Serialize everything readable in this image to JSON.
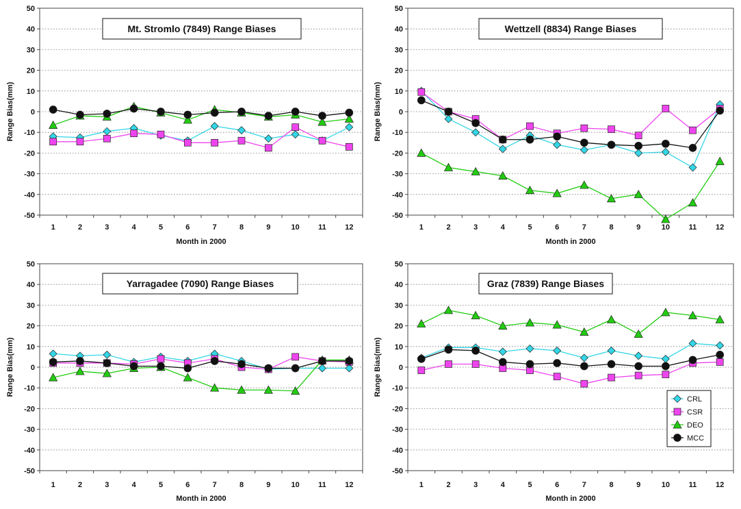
{
  "legend": {
    "placement": "bottom-right of Graz panel",
    "entries": [
      {
        "name": "CRL",
        "color": "#33d6e6",
        "marker": "diamond"
      },
      {
        "name": "CSR",
        "color": "#ee44ee",
        "marker": "square"
      },
      {
        "name": "DEO",
        "color": "#22cc11",
        "marker": "triangle"
      },
      {
        "name": "MCC",
        "color": "#111111",
        "marker": "circle"
      }
    ]
  },
  "chart_data": [
    {
      "type": "line",
      "title": "Mt. Stromlo (7849) Range Biases",
      "xlabel": "Month in 2000",
      "ylabel": "Range Bias(mm)",
      "ylim": [
        -50,
        50
      ],
      "yticks": [
        "50",
        "40",
        "30",
        "20",
        "10",
        "0",
        "-10",
        "-20",
        "-30",
        "-40",
        "-50"
      ],
      "categories": [
        "1",
        "2",
        "3",
        "4",
        "5",
        "6",
        "7",
        "8",
        "9",
        "10",
        "11",
        "12"
      ],
      "grid": "dotted horizontal",
      "series": [
        {
          "name": "CRL",
          "values": [
            -12,
            -12.5,
            -9.5,
            -8,
            -11.5,
            -14,
            -7,
            -9,
            -13,
            -11,
            -14,
            -7.5
          ]
        },
        {
          "name": "CSR",
          "values": [
            -14.5,
            -14.5,
            -13,
            -10.5,
            -11,
            -15,
            -15,
            -14,
            -17.5,
            -7.5,
            -14,
            -17
          ]
        },
        {
          "name": "DEO",
          "values": [
            -6.5,
            -2,
            -2.5,
            2.5,
            -0.5,
            -4,
            1,
            -0.5,
            -2.5,
            -1.5,
            -5,
            -3.5
          ]
        },
        {
          "name": "MCC",
          "values": [
            1,
            -1.5,
            -1,
            1.5,
            0,
            -1.5,
            -0.5,
            0,
            -2,
            0,
            -2,
            -0.5
          ]
        }
      ]
    },
    {
      "type": "line",
      "title": "Wettzell (8834) Range Biases",
      "xlabel": "Month in 2000",
      "ylabel": "Range Bias(mm)",
      "ylim": [
        -50,
        50
      ],
      "yticks": [
        "50",
        "40",
        "30",
        "20",
        "10",
        "0",
        "-10",
        "-20",
        "-30",
        "-40",
        "-50"
      ],
      "categories": [
        "1",
        "2",
        "3",
        "4",
        "5",
        "6",
        "7",
        "8",
        "9",
        "10",
        "11",
        "12"
      ],
      "grid": "dotted horizontal",
      "series": [
        {
          "name": "CRL",
          "values": [
            10,
            -3.5,
            -10,
            -18,
            -11.5,
            -16,
            -18.5,
            -16,
            -20,
            -19.5,
            -27,
            3.5
          ]
        },
        {
          "name": "CSR",
          "values": [
            9.5,
            0,
            -3.5,
            -13.5,
            -7,
            -10.5,
            -8,
            -8.5,
            -11.5,
            1.5,
            -9,
            1.5
          ]
        },
        {
          "name": "DEO",
          "values": [
            -20,
            -27,
            -29,
            -31,
            -38,
            -39.5,
            -35.5,
            -42,
            -40,
            -52,
            -44,
            -24
          ]
        },
        {
          "name": "MCC",
          "values": [
            5.5,
            0,
            -5.5,
            -13.5,
            -13.5,
            -12,
            -15,
            -16,
            -16.5,
            -15.5,
            -17.5,
            0.5
          ]
        }
      ]
    },
    {
      "type": "line",
      "title": "Yarragadee (7090) Range Biases",
      "xlabel": "Month in 2000",
      "ylabel": "Range Bias(mm)",
      "ylim": [
        -50,
        50
      ],
      "yticks": [
        "50",
        "40",
        "30",
        "20",
        "10",
        "0",
        "-10",
        "-20",
        "-30",
        "-40",
        "-50"
      ],
      "categories": [
        "1",
        "2",
        "3",
        "4",
        "5",
        "6",
        "7",
        "8",
        "9",
        "10",
        "11",
        "12"
      ],
      "grid": "dotted horizontal",
      "series": [
        {
          "name": "CRL",
          "values": [
            6.5,
            5.5,
            6,
            2.5,
            5,
            3,
            6.5,
            3,
            -1,
            -0.5,
            -0.5,
            -0.5
          ]
        },
        {
          "name": "CSR",
          "values": [
            2,
            2,
            2,
            1.5,
            4,
            2,
            4,
            0,
            -1,
            5,
            3,
            2.5
          ]
        },
        {
          "name": "DEO",
          "values": [
            -5,
            -2,
            -3,
            -0.5,
            0,
            -5,
            -10,
            -11,
            -11,
            -11.5,
            3.5,
            3.5
          ]
        },
        {
          "name": "MCC",
          "values": [
            2.5,
            3,
            2,
            0.5,
            0.5,
            -0.5,
            3,
            1.5,
            -0.5,
            -0.5,
            3,
            3
          ]
        }
      ]
    },
    {
      "type": "line",
      "title": "Graz (7839) Range Biases",
      "xlabel": "Month in 2000",
      "ylabel": "Range Bias(mm)",
      "ylim": [
        -50,
        50
      ],
      "yticks": [
        "50",
        "40",
        "30",
        "20",
        "10",
        "0",
        "-10",
        "-20",
        "-30",
        "-40",
        "-50"
      ],
      "categories": [
        "1",
        "2",
        "3",
        "4",
        "5",
        "6",
        "7",
        "8",
        "9",
        "10",
        "11",
        "12"
      ],
      "grid": "dotted horizontal",
      "series": [
        {
          "name": "CRL",
          "values": [
            4.5,
            9.5,
            9.5,
            7.5,
            9,
            8,
            4.5,
            8,
            5.5,
            4,
            11.5,
            10.5
          ]
        },
        {
          "name": "CSR",
          "values": [
            -1.5,
            1.5,
            1.5,
            -0.5,
            -1.5,
            -4.5,
            -8,
            -5,
            -4,
            -3.5,
            2,
            2.5
          ]
        },
        {
          "name": "DEO",
          "values": [
            21,
            27.5,
            25,
            20,
            21.5,
            20.5,
            17,
            23,
            16,
            26.5,
            25,
            23
          ]
        },
        {
          "name": "MCC",
          "values": [
            4,
            8.5,
            8,
            2.5,
            1.5,
            2,
            0.5,
            1.5,
            0.5,
            0.5,
            3.5,
            6
          ]
        }
      ]
    }
  ]
}
